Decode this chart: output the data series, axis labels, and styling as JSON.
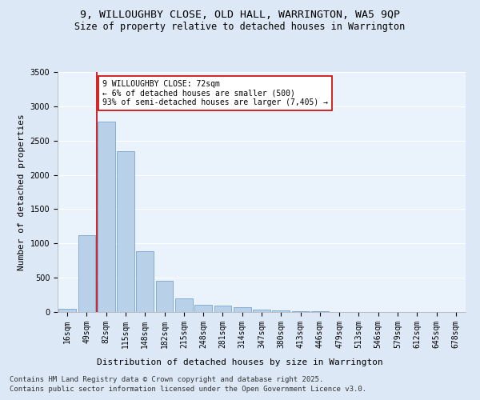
{
  "title1": "9, WILLOUGHBY CLOSE, OLD HALL, WARRINGTON, WA5 9QP",
  "title2": "Size of property relative to detached houses in Warrington",
  "xlabel": "Distribution of detached houses by size in Warrington",
  "ylabel": "Number of detached properties",
  "categories": [
    "16sqm",
    "49sqm",
    "82sqm",
    "115sqm",
    "148sqm",
    "182sqm",
    "215sqm",
    "248sqm",
    "281sqm",
    "314sqm",
    "347sqm",
    "380sqm",
    "413sqm",
    "446sqm",
    "479sqm",
    "513sqm",
    "546sqm",
    "579sqm",
    "612sqm",
    "645sqm",
    "678sqm"
  ],
  "values": [
    50,
    1120,
    2780,
    2340,
    890,
    450,
    200,
    110,
    90,
    65,
    40,
    25,
    15,
    8,
    5,
    3,
    2,
    1,
    1,
    0,
    0
  ],
  "bar_color": "#b8d0e8",
  "bar_edge_color": "#6699cc",
  "vline_color": "#cc0000",
  "annotation_text": "9 WILLOUGHBY CLOSE: 72sqm\n← 6% of detached houses are smaller (500)\n93% of semi-detached houses are larger (7,405) →",
  "annotation_box_color": "#ffffff",
  "annotation_box_edge": "#cc0000",
  "footer1": "Contains HM Land Registry data © Crown copyright and database right 2025.",
  "footer2": "Contains public sector information licensed under the Open Government Licence v3.0.",
  "bg_color": "#dce8f5",
  "plot_bg_color": "#eaf2fb",
  "ylim": [
    0,
    3500
  ],
  "title_fontsize": 9.5,
  "subtitle_fontsize": 8.5,
  "axis_label_fontsize": 8,
  "tick_fontsize": 7,
  "annotation_fontsize": 7,
  "footer_fontsize": 6.5
}
